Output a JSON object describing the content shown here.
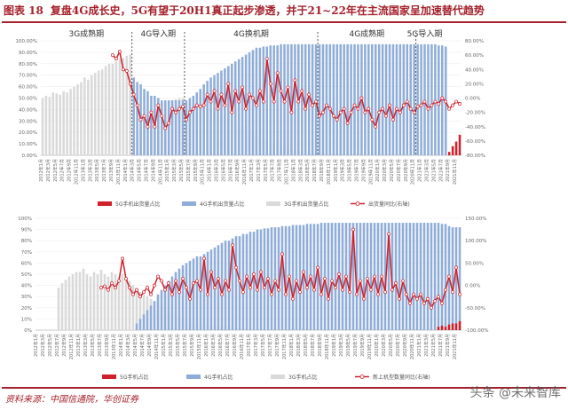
{
  "title": {
    "figure": "图表 18",
    "text": "复盘4G成长史，5G有望于20H1真正起步渗透，并于21~22年在主流国家呈加速替代趋势"
  },
  "source": "资料来源：中国信通院，华创证券",
  "watermark": "头条 @未来智库",
  "colors": {
    "g5": "#d0202a",
    "g4": "#8fadd8",
    "g3": "#d9d9d9",
    "line": "#d0202a"
  },
  "chart_data": [
    {
      "type": "bar+line",
      "phases": [
        "3G成熟期",
        "4G导入期",
        "4G换机期",
        "4G成熟期",
        "5G导入期"
      ],
      "phase_bounds": [
        0,
        26,
        41,
        79,
        107,
        112
      ],
      "x_start": "2012年1月",
      "x_end": "2019年11月",
      "ylim_left": [
        0,
        100
      ],
      "ylim_right": [
        -80,
        80
      ],
      "yticks_left": [
        "0.00%",
        "10.00%",
        "20.00%",
        "30.00%",
        "40.00%",
        "50.00%",
        "60.00%",
        "70.00%",
        "80.00%",
        "90.00%",
        "100.00%"
      ],
      "yticks_right": [
        "-80.00%",
        "-60.00%",
        "-40.00%",
        "-20.00%",
        "0.00%",
        "20.00%",
        "40.00%",
        "60.00%",
        "80.00%"
      ],
      "legend": [
        "5G手机出货量占比",
        "4G手机出货量占比",
        "3G手机出货量占比",
        "出货量同比(右轴)"
      ],
      "series_3g": [
        50,
        52,
        51,
        55,
        54,
        53,
        56,
        55,
        58,
        60,
        62,
        64,
        68,
        66,
        70,
        72,
        74,
        75,
        78,
        80,
        80,
        82,
        84,
        85,
        87,
        88,
        14,
        20,
        24,
        30,
        34,
        38,
        40,
        42,
        44,
        46,
        47,
        48,
        49,
        50,
        50,
        46,
        46,
        45,
        44,
        43,
        42,
        41,
        40,
        39,
        38,
        36,
        35,
        33,
        32,
        30,
        28,
        26,
        24,
        22,
        20,
        18,
        16,
        14,
        12,
        10,
        10,
        9,
        8,
        7,
        6,
        5,
        5,
        5,
        4,
        4,
        4,
        3,
        3,
        3,
        3,
        2,
        2,
        2,
        2,
        2,
        2,
        2,
        2,
        2,
        1,
        1,
        1,
        1,
        1,
        1,
        1,
        1,
        1,
        1,
        1,
        1,
        1,
        1,
        1,
        1,
        1,
        1,
        1,
        1,
        1,
        1,
        1,
        1,
        1,
        1,
        1,
        1,
        1,
        1
      ],
      "series_4g": [
        0,
        0,
        0,
        0,
        0,
        0,
        0,
        0,
        0,
        0,
        0,
        0,
        0,
        0,
        0,
        0,
        0,
        0,
        0,
        0,
        0,
        0,
        0,
        0,
        0,
        0,
        68,
        64,
        62,
        58,
        56,
        52,
        52,
        50,
        48,
        48,
        48,
        48,
        48,
        48,
        48,
        48,
        50,
        52,
        55,
        58,
        62,
        65,
        68,
        70,
        72,
        74,
        76,
        78,
        80,
        82,
        84,
        86,
        88,
        90,
        92,
        94,
        94,
        95,
        95,
        96,
        96,
        96,
        97,
        97,
        97,
        97,
        97,
        97,
        97,
        97,
        97,
        97,
        97,
        97,
        97,
        97,
        97,
        97,
        97,
        97,
        97,
        97,
        97,
        97,
        97,
        97,
        97,
        97,
        97,
        97,
        97,
        97,
        97,
        97,
        97,
        97,
        97,
        97,
        97,
        97,
        97,
        97,
        97,
        97,
        97,
        97,
        97,
        96,
        96,
        95
      ],
      "series_5g": [
        0,
        0,
        0,
        0,
        0,
        0,
        0,
        0,
        0,
        0,
        0,
        0,
        0,
        0,
        0,
        0,
        0,
        0,
        0,
        0,
        0,
        0,
        0,
        0,
        0,
        0,
        0,
        0,
        0,
        0,
        0,
        0,
        0,
        0,
        0,
        0,
        0,
        0,
        0,
        0,
        0,
        0,
        0,
        0,
        0,
        0,
        0,
        0,
        0,
        0,
        0,
        0,
        0,
        0,
        0,
        0,
        0,
        0,
        0,
        0,
        0,
        0,
        0,
        0,
        0,
        0,
        0,
        0,
        0,
        0,
        0,
        0,
        0,
        0,
        0,
        0,
        0,
        0,
        0,
        0,
        0,
        0,
        0,
        0,
        0,
        0,
        0,
        0,
        0,
        0,
        0,
        0,
        0,
        0,
        0,
        0,
        0,
        0,
        0,
        0,
        0,
        0,
        0,
        0,
        0,
        0,
        0,
        0,
        0,
        0,
        0,
        0,
        0,
        0,
        0,
        0,
        3,
        8,
        12,
        18
      ],
      "series_yoy": [
        null,
        null,
        null,
        null,
        null,
        null,
        null,
        null,
        null,
        null,
        null,
        null,
        null,
        null,
        null,
        null,
        null,
        null,
        null,
        null,
        60,
        55,
        65,
        40,
        38,
        20,
        5,
        -10,
        -30,
        -25,
        -40,
        -20,
        -40,
        -10,
        -25,
        -42,
        -35,
        -15,
        -20,
        -15,
        -12,
        -30,
        -20,
        -15,
        -10,
        -12,
        -10,
        5,
        -5,
        10,
        -15,
        5,
        -10,
        20,
        -20,
        10,
        -5,
        15,
        -15,
        5,
        0,
        -10,
        10,
        -5,
        55,
        20,
        -5,
        35,
        10,
        -5,
        15,
        -20,
        25,
        -5,
        10,
        -15,
        5,
        -10,
        -5,
        -25,
        -20,
        -10,
        -15,
        -25,
        -30,
        -20,
        -15,
        -35,
        -20,
        -10,
        -15,
        0,
        -20,
        -15,
        -30,
        -40,
        -20,
        -15,
        -25,
        -10,
        -30,
        -15,
        -20,
        -10,
        -5,
        -15,
        -20,
        -12,
        -10,
        -5,
        -15,
        -10,
        -5,
        -8,
        0,
        -5,
        -15,
        -10,
        -5,
        -8
      ]
    },
    {
      "type": "bar+line",
      "x_start": "2012年1月",
      "x_end": "2019年11月",
      "ylim_left": [
        0,
        100
      ],
      "ylim_right": [
        -100,
        150
      ],
      "yticks_left": [
        "0%",
        "10%",
        "20%",
        "30%",
        "40%",
        "50%",
        "60%",
        "70%",
        "80%",
        "90%",
        "100%"
      ],
      "yticks_right": [
        "-100.00%",
        "-50.00%",
        "0.00%",
        "50.00%",
        "100.00%",
        "150.00%"
      ],
      "legend": [
        "5G手机占比",
        "4G手机占比",
        "3G手机占比",
        "新上机型数量同比(右轴)"
      ],
      "series_3g": [
        0,
        0,
        0,
        0,
        0,
        0,
        38,
        42,
        45,
        48,
        50,
        52,
        52,
        55,
        50,
        48,
        52,
        50,
        54,
        50,
        48,
        52,
        50,
        48,
        50,
        46,
        44,
        40,
        38,
        34,
        32,
        30,
        28,
        26,
        24,
        22,
        20,
        18,
        16,
        14,
        12,
        10,
        8,
        8,
        7,
        6,
        6,
        5,
        5,
        4,
        4,
        4,
        3,
        3,
        3,
        3,
        2,
        2,
        2,
        2,
        2,
        2,
        1,
        1,
        1,
        1,
        1,
        1,
        1,
        1,
        1,
        1,
        1,
        1,
        1,
        1,
        1,
        1,
        1,
        1,
        1,
        1,
        1,
        1,
        1,
        1,
        1,
        1,
        1,
        1,
        1,
        1,
        1,
        1,
        1,
        1,
        1,
        1,
        1,
        1,
        1,
        1,
        1,
        1,
        1,
        1,
        1,
        1,
        1,
        1,
        1,
        1,
        1,
        1,
        1,
        1,
        1,
        1,
        1,
        1
      ],
      "series_4g": [
        0,
        0,
        0,
        0,
        0,
        0,
        0,
        0,
        0,
        0,
        0,
        0,
        0,
        0,
        0,
        0,
        0,
        0,
        0,
        0,
        0,
        0,
        0,
        0,
        0,
        0,
        0,
        0,
        6,
        10,
        14,
        18,
        22,
        26,
        32,
        36,
        40,
        44,
        48,
        52,
        55,
        58,
        60,
        62,
        64,
        66,
        66,
        68,
        70,
        72,
        74,
        76,
        78,
        80,
        80,
        82,
        84,
        84,
        86,
        86,
        88,
        88,
        90,
        90,
        91,
        91,
        92,
        92,
        92,
        93,
        93,
        93,
        94,
        94,
        94,
        94,
        95,
        95,
        95,
        95,
        96,
        96,
        96,
        96,
        96,
        96,
        96,
        96,
        96,
        96,
        96,
        96,
        96,
        96,
        96,
        96,
        96,
        96,
        96,
        96,
        96,
        96,
        96,
        96,
        96,
        96,
        96,
        96,
        96,
        96,
        96,
        96,
        96,
        96,
        95,
        95,
        93,
        92,
        92,
        92
      ],
      "series_5g": [
        0,
        0,
        0,
        0,
        0,
        0,
        0,
        0,
        0,
        0,
        0,
        0,
        0,
        0,
        0,
        0,
        0,
        0,
        0,
        0,
        0,
        0,
        0,
        0,
        0,
        0,
        0,
        0,
        0,
        0,
        0,
        0,
        0,
        0,
        0,
        0,
        0,
        0,
        0,
        0,
        0,
        0,
        0,
        0,
        0,
        0,
        0,
        0,
        0,
        0,
        0,
        0,
        0,
        0,
        0,
        0,
        0,
        0,
        0,
        0,
        0,
        0,
        0,
        0,
        0,
        0,
        0,
        0,
        0,
        0,
        0,
        0,
        0,
        0,
        0,
        0,
        0,
        0,
        0,
        0,
        0,
        0,
        0,
        0,
        0,
        0,
        0,
        0,
        0,
        0,
        0,
        0,
        0,
        0,
        0,
        0,
        0,
        0,
        0,
        0,
        0,
        0,
        0,
        0,
        0,
        0,
        0,
        0,
        0,
        0,
        0,
        0,
        0,
        3,
        4,
        3,
        5,
        6,
        6,
        8
      ],
      "series_yoy": [
        null,
        null,
        null,
        null,
        null,
        null,
        null,
        null,
        null,
        null,
        null,
        null,
        null,
        null,
        null,
        null,
        null,
        null,
        -5,
        -2,
        -10,
        5,
        -5,
        10,
        60,
        15,
        -5,
        -20,
        -10,
        -25,
        -15,
        -5,
        -20,
        0,
        20,
        10,
        -10,
        5,
        -20,
        10,
        -15,
        15,
        -5,
        -30,
        5,
        10,
        -10,
        60,
        -20,
        30,
        -5,
        15,
        -20,
        10,
        -10,
        90,
        40,
        10,
        -15,
        20,
        -5,
        25,
        -10,
        30,
        -5,
        15,
        -20,
        10,
        -10,
        70,
        -20,
        20,
        -30,
        10,
        -15,
        30,
        -5,
        20,
        -10,
        40,
        -20,
        15,
        -30,
        10,
        -5,
        25,
        -10,
        20,
        -15,
        125,
        -20,
        10,
        -30,
        15,
        -10,
        20,
        -20,
        20,
        -15,
        115,
        -10,
        5,
        -30,
        10,
        -20,
        -40,
        -20,
        -30,
        -20,
        -40,
        -30,
        -50,
        -35,
        -25,
        -40,
        -10,
        20,
        -15,
        40,
        -20
      ]
    }
  ]
}
